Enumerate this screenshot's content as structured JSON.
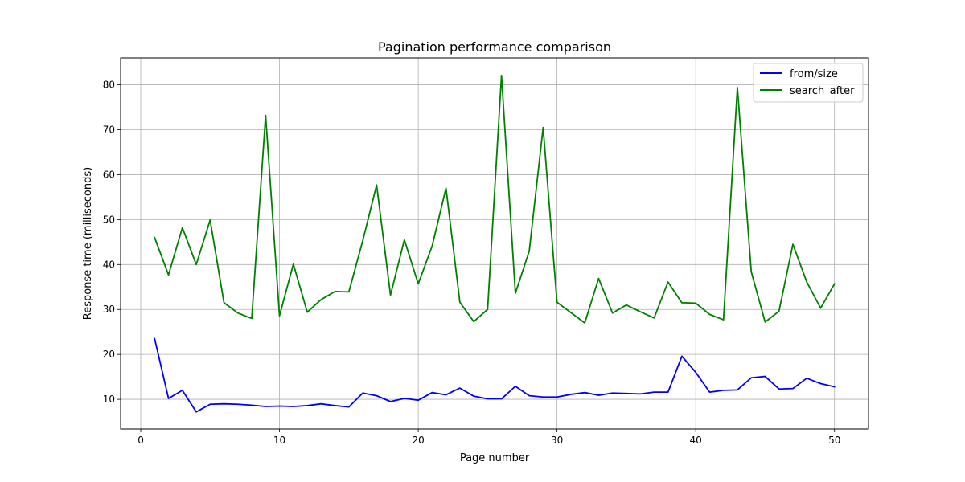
{
  "chart_data": {
    "type": "line",
    "title": "Pagination performance comparison",
    "xlabel": "Page number",
    "ylabel": "Response time (milliseconds)",
    "xlim": [
      -1.45,
      52.45
    ],
    "ylim": [
      3.4,
      86.0
    ],
    "xticks": [
      0,
      10,
      20,
      30,
      40,
      50
    ],
    "yticks": [
      10,
      20,
      30,
      40,
      50,
      60,
      70,
      80
    ],
    "grid": true,
    "legend_position": "top-right",
    "x": [
      1,
      2,
      3,
      4,
      5,
      6,
      7,
      8,
      9,
      10,
      11,
      12,
      13,
      14,
      15,
      16,
      17,
      18,
      19,
      20,
      21,
      22,
      23,
      24,
      25,
      26,
      27,
      28,
      29,
      30,
      31,
      32,
      33,
      34,
      35,
      36,
      37,
      38,
      39,
      40,
      41,
      42,
      43,
      44,
      45,
      46,
      47,
      48,
      49,
      50
    ],
    "series": [
      {
        "name": "from/size",
        "color": "#0000ff",
        "values": [
          23.5,
          10.2,
          12.0,
          7.2,
          8.9,
          9.0,
          8.9,
          8.7,
          8.4,
          8.5,
          8.4,
          8.6,
          9.0,
          8.6,
          8.3,
          11.4,
          10.8,
          9.5,
          10.2,
          9.8,
          11.5,
          11.0,
          12.5,
          10.7,
          10.1,
          10.1,
          12.9,
          10.8,
          10.5,
          10.5,
          11.1,
          11.5,
          10.9,
          11.4,
          11.3,
          11.2,
          11.6,
          11.6,
          19.6,
          16.0,
          11.6,
          12.0,
          12.1,
          14.8,
          15.1,
          12.3,
          12.4,
          14.7,
          13.5,
          12.8
        ]
      },
      {
        "name": "search_after",
        "color": "#008000",
        "values": [
          46.0,
          37.7,
          48.2,
          40.0,
          49.9,
          31.5,
          29.2,
          28.0,
          73.2,
          28.6,
          40.1,
          29.4,
          32.2,
          34.0,
          33.9,
          45.3,
          57.7,
          33.2,
          45.5,
          35.7,
          44.1,
          57.0,
          31.6,
          27.3,
          30.0,
          82.1,
          33.6,
          43.0,
          70.5,
          31.6,
          29.3,
          27.0,
          36.9,
          29.2,
          31.0,
          29.5,
          28.1,
          36.1,
          31.5,
          31.4,
          28.9,
          27.7,
          79.4,
          38.4,
          27.2,
          29.6,
          44.5,
          36.1,
          30.3,
          35.7
        ]
      }
    ]
  }
}
